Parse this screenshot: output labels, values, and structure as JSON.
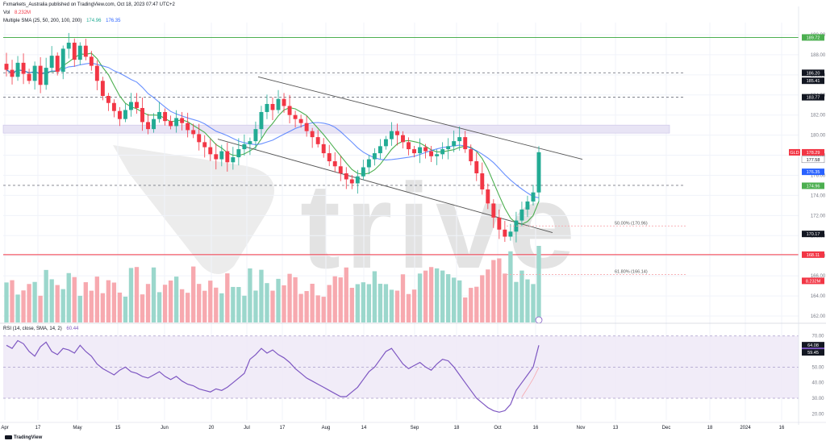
{
  "header": {
    "publisher": "Fxmarkets_Australia published on TradingView.com, Oct 18, 2023 07:47 UTC+2",
    "vol_label": "Vol",
    "vol_value": "8.232M",
    "sma_label": "Multiple SMA (25, 50, 200, 100, 200)",
    "sma_value_green": "174.96",
    "sma_value_blue": "176.35"
  },
  "rsi_header": {
    "label": "RSI (14, close, SMA, 14, 2)",
    "value": "60.44"
  },
  "branding": {
    "watermark_text": "trive",
    "footer": "TradingView"
  },
  "colors": {
    "up": "#22ab94",
    "down": "#f23645",
    "sma_green": "#4caf50",
    "sma_blue": "#2962ff",
    "rsi_line": "#7e57c2",
    "rsi_band": "#ede7f6",
    "price_tag_blue": "#2962ff",
    "price_tag_green": "#4caf50",
    "price_tag_red": "#f23645",
    "price_tag_dark": "#131722"
  },
  "chart_data": {
    "type": "candlestick",
    "symbol": "GLD",
    "x_ticks": [
      "Apr",
      "17",
      "May",
      "15",
      "Jun",
      "20",
      "Jul",
      "17",
      "Aug",
      "14",
      "Sep",
      "18",
      "Oct",
      "16",
      "Nov",
      "13",
      "Dec",
      "18",
      "2024",
      "16"
    ],
    "y_ticks": [
      162.0,
      164.0,
      166.0,
      168.0,
      170.0,
      172.0,
      174.0,
      176.0,
      178.0,
      180.0,
      182.0,
      184.0,
      186.0,
      188.0,
      190.0
    ],
    "ylim": [
      161.2,
      191.2
    ],
    "price_tags": [
      {
        "label": "189.72",
        "value": 189.72,
        "style": "green"
      },
      {
        "label": "186.20",
        "value": 186.2,
        "style": "dark"
      },
      {
        "label": "185.41",
        "value": 185.41,
        "style": "dark"
      },
      {
        "label": "183.77",
        "value": 183.77,
        "style": "dark"
      },
      {
        "label": "GLD",
        "value": 178.29,
        "style": "red",
        "text": "178.29"
      },
      {
        "label": "177.58",
        "value": 177.58,
        "style": "plain"
      },
      {
        "label": "176.35",
        "value": 176.35,
        "style": "blue"
      },
      {
        "label": "174.96",
        "value": 174.96,
        "style": "green"
      },
      {
        "label": "170.17",
        "value": 170.17,
        "style": "dark"
      },
      {
        "label": "168.11",
        "value": 168.11,
        "style": "red"
      },
      {
        "label": "8.232M",
        "value": 165.5,
        "style": "red"
      }
    ],
    "horizontal_lines": [
      {
        "value": 189.72,
        "style": "solid",
        "color": "green"
      },
      {
        "value": 186.2,
        "style": "dashed"
      },
      {
        "value": 183.77,
        "style": "dashed"
      },
      {
        "value": 175.0,
        "style": "dashed"
      },
      {
        "value": 168.11,
        "style": "solid",
        "color": "red"
      }
    ],
    "resistance_zone": [
      180.2,
      181.0
    ],
    "trend_channel": {
      "upper": [
        [
          "Jul 1",
          185.8
        ],
        [
          "Oct 20",
          177.6
        ]
      ],
      "lower": [
        [
          "Jun 15",
          179.5
        ],
        [
          "Oct 20",
          170.4
        ]
      ]
    },
    "fib_levels": [
      {
        "label": "50.00% (170.96)",
        "value": 170.96
      },
      {
        "label": "61.80% (166.14)",
        "value": 166.14
      }
    ],
    "closes": [
      186.5,
      185.8,
      187.2,
      186.1,
      185.4,
      186.9,
      185.0,
      186.7,
      187.9,
      186.3,
      188.6,
      189.2,
      187.5,
      188.9,
      187.8,
      186.9,
      185.4,
      183.9,
      183.2,
      182.4,
      181.6,
      182.5,
      183.3,
      182.7,
      181.3,
      180.6,
      181.6,
      182.3,
      181.4,
      180.9,
      181.7,
      181.2,
      180.5,
      180.1,
      179.3,
      178.8,
      178.1,
      177.6,
      178.4,
      177.3,
      177.8,
      178.6,
      179.1,
      179.4,
      180.6,
      182.3,
      183.1,
      182.5,
      183.6,
      182.9,
      182.0,
      181.6,
      181.2,
      180.4,
      179.8,
      179.1,
      178.2,
      177.4,
      176.9,
      176.2,
      175.6,
      175.2,
      175.9,
      176.8,
      177.6,
      178.2,
      178.9,
      179.6,
      180.4,
      180.0,
      179.3,
      178.6,
      178.2,
      178.8,
      178.4,
      177.9,
      178.1,
      178.6,
      178.9,
      179.4,
      179.8,
      178.6,
      177.4,
      176.2,
      174.6,
      173.2,
      171.8,
      170.6,
      169.9,
      170.4,
      171.5,
      172.6,
      173.4,
      174.3,
      178.3
    ]
  },
  "rsi_data": {
    "y_ticks": [
      20.0,
      30.0,
      40.0,
      50.0,
      60.0,
      70.0
    ],
    "ylim": [
      16,
      74
    ],
    "band": [
      30,
      70
    ],
    "tags": [
      {
        "label": "64.08",
        "value": 64.08,
        "style": "dark"
      },
      {
        "label": "60.44",
        "value": 60.44,
        "style": "purple"
      },
      {
        "label": "59.45",
        "value": 59.45,
        "style": "dark"
      }
    ],
    "values": [
      64,
      62,
      67,
      65,
      60,
      57,
      63,
      66,
      60,
      58,
      62,
      61,
      59,
      64,
      60,
      57,
      52,
      49,
      47,
      45,
      48,
      50,
      47,
      46,
      44,
      43,
      45,
      47,
      44,
      42,
      44,
      41,
      39,
      38,
      36,
      35,
      34,
      36,
      35,
      37,
      40,
      43,
      46,
      55,
      58,
      62,
      59,
      61,
      58,
      56,
      53,
      49,
      46,
      43,
      41,
      39,
      37,
      35,
      33,
      31,
      31,
      34,
      37,
      42,
      47,
      50,
      55,
      60,
      62,
      57,
      52,
      49,
      51,
      53,
      50,
      48,
      52,
      55,
      54,
      50,
      45,
      40,
      35,
      30,
      27,
      24,
      22,
      21,
      22,
      26,
      35,
      40,
      45,
      50,
      64
    ]
  }
}
